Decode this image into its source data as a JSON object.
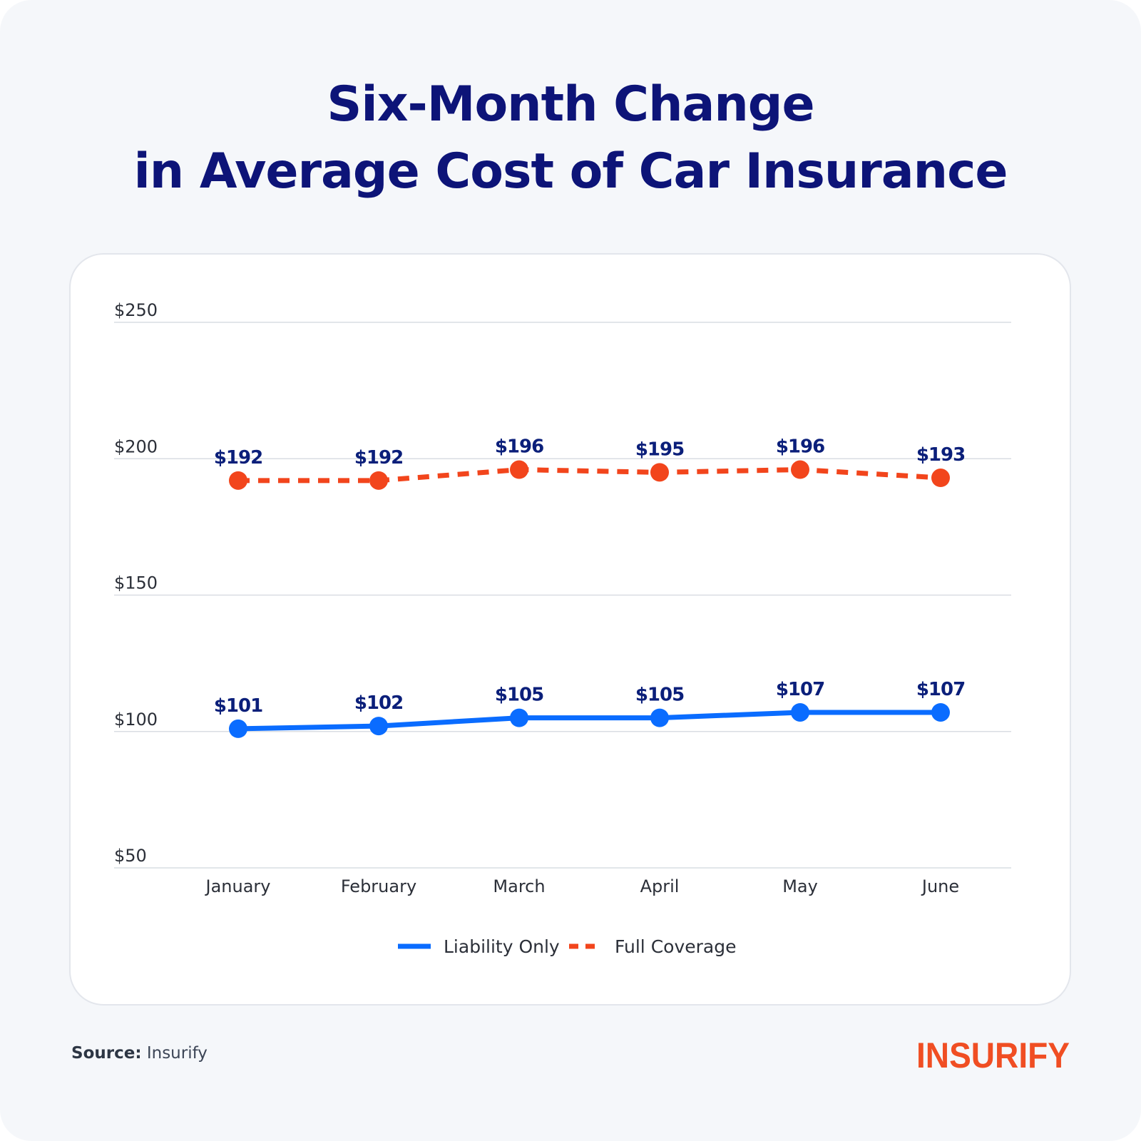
{
  "title": {
    "line1": "Six-Month Change",
    "line2": "in Average Cost of Car Insurance"
  },
  "source": {
    "label": "Source:",
    "value": "Insurify"
  },
  "logo": {
    "text": "INSURIFY",
    "color": "#f04e23"
  },
  "colors": {
    "title": "#0d1478",
    "liability": "#0a6cff",
    "full_coverage": "#f2451c",
    "data_label": "#0b1f7a",
    "gridline": "#d9dde3"
  },
  "chart_data": {
    "type": "line",
    "categories": [
      "January",
      "February",
      "March",
      "April",
      "May",
      "June"
    ],
    "ylim": [
      50,
      250
    ],
    "yticks": [
      50,
      100,
      150,
      200,
      250
    ],
    "ytick_labels": [
      "$50",
      "$100",
      "$150",
      "$200",
      "$250"
    ],
    "grid": true,
    "legend_position": "bottom",
    "series": [
      {
        "name": "Liability Only",
        "style": "solid",
        "values": [
          101,
          102,
          105,
          105,
          107,
          107
        ],
        "labels": [
          "$101",
          "$102",
          "$105",
          "$105",
          "$107",
          "$107"
        ]
      },
      {
        "name": "Full Coverage",
        "style": "dashed",
        "values": [
          192,
          192,
          196,
          195,
          196,
          193
        ],
        "labels": [
          "$192",
          "$192",
          "$196",
          "$195",
          "$196",
          "$193"
        ]
      }
    ]
  }
}
